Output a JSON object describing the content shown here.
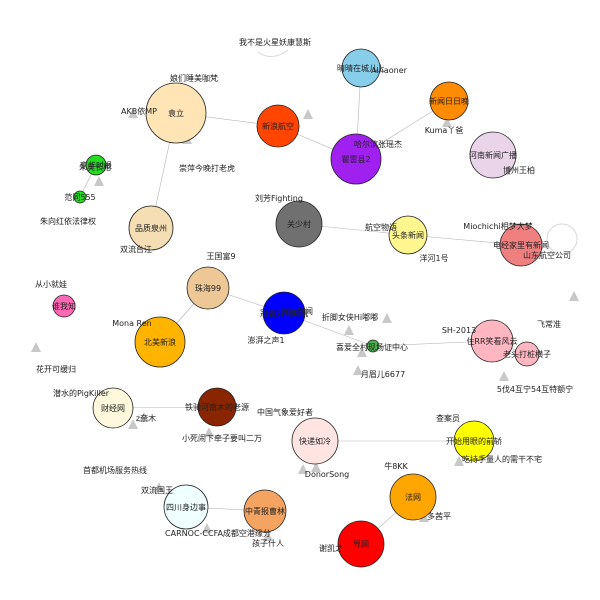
{
  "diagram": {
    "background": "#ffffff",
    "edge_color": "#b5b5b5",
    "node_stroke": "#222222",
    "nodes": [
      {
        "id": "n_yuanli",
        "label": "袁立",
        "color": "#ffe4b5"
      },
      {
        "id": "n_qingdao",
        "label": "晴晴在城儿上",
        "color": "#87ceeb"
      },
      {
        "id": "n_xinwen",
        "label": "新闻日日晚",
        "color": "#ff8c00"
      },
      {
        "id": "n_sina",
        "label": "新浪航空",
        "color": "#ff4500"
      },
      {
        "id": "n_guogui",
        "label": "瞿雷县2",
        "color": "#a020f0"
      },
      {
        "id": "n_henan",
        "label": "河南新闻广播",
        "color": "#ead4ea"
      },
      {
        "id": "n_jingcai",
        "label": "京华时报",
        "color": "#22dd22"
      },
      {
        "id": "n_huangjian",
        "label": "范同555",
        "color": "#22dd22"
      },
      {
        "id": "n_pingzhi",
        "label": "品质泉州",
        "color": "#f5deb3"
      },
      {
        "id": "n_guanshuo",
        "label": "关少村",
        "color": "#707070"
      },
      {
        "id": "n_toutiao",
        "label": "头条新闻",
        "color": "#fff68f"
      },
      {
        "id": "n_caixin",
        "label": "电经家里有新闻",
        "color": "#f08080"
      },
      {
        "id": "n_huiyang",
        "label": "珠海99",
        "color": "#edc896"
      },
      {
        "id": "n_shixun",
        "label": "冠者对视察机",
        "color": "#0000ff"
      },
      {
        "id": "n_qiaoqiao",
        "label": "谁我知",
        "color": "#ff69b4"
      },
      {
        "id": "n_beimei",
        "label": "北美新浪",
        "color": "#ffb400"
      },
      {
        "id": "n_zhongguo",
        "label": "",
        "color": "#4caf50"
      },
      {
        "id": "n_shrr",
        "label": "住RR笑看风云",
        "color": "#ffb6c1"
      },
      {
        "id": "n_xiaozhu",
        "label": "",
        "color": "#ffb6c1"
      },
      {
        "id": "n_caijing",
        "label": "财经网",
        "color": "#fff8dc"
      },
      {
        "id": "n_tieqi",
        "label": "铁骑河南木的老源",
        "color": "#8b2500"
      },
      {
        "id": "n_kuaidi",
        "label": "快递如冷",
        "color": "#ffe4e1"
      },
      {
        "id": "n_kaishi",
        "label": "开始用眼的前轿",
        "color": "#ffff00"
      },
      {
        "id": "n_sichuan",
        "label": "四川身边事",
        "color": "#f0ffff"
      },
      {
        "id": "n_zhongqing",
        "label": "中青报曹林",
        "color": "#f4a460"
      },
      {
        "id": "n_fawang",
        "label": "法网",
        "color": "#ffa500"
      },
      {
        "id": "n_jingwei",
        "label": "界网",
        "color": "#ff0000"
      }
    ],
    "labels": [
      "我不是火星妖康慧斯",
      "Alnaoner",
      "Kuma丫爸",
      "崇萍今晚打老虎",
      "AKB依MP",
      "娘们睡美咖梵",
      "刘芳Fighting",
      "网易新闻",
      "航空物语",
      "洋河1号",
      "Miochichi相梦大梦",
      "山东航空公司",
      "双流台江",
      "王国富9",
      "从小就娃",
      "Mona Ren",
      "澎湃之声1",
      "折脚女侠Hi嘟嘟",
      "喜爱全村现场证中心",
      "月眉儿6677",
      "SH-2013",
      "飞常准",
      "老头打桩横子",
      "5伐4互宁54互特额宁",
      "花开可缓归",
      "潜水的PigKiller",
      "z奈木",
      "小死闹下牵子要叫二万",
      "中国气象爱好者",
      "DonorSong",
      "查案员",
      "牛8KK",
      "吃持手量人的需干不宅",
      "首都机场服务热线",
      "双流国王",
      "CARNOC-CCFA成都空港缘分",
      "孩子什人",
      "多茜平",
      "谢凯之",
      "朱奥长相",
      "哈尔滨张瑶杰",
      "博州王柏",
      "朱向红依法律权"
    ]
  }
}
